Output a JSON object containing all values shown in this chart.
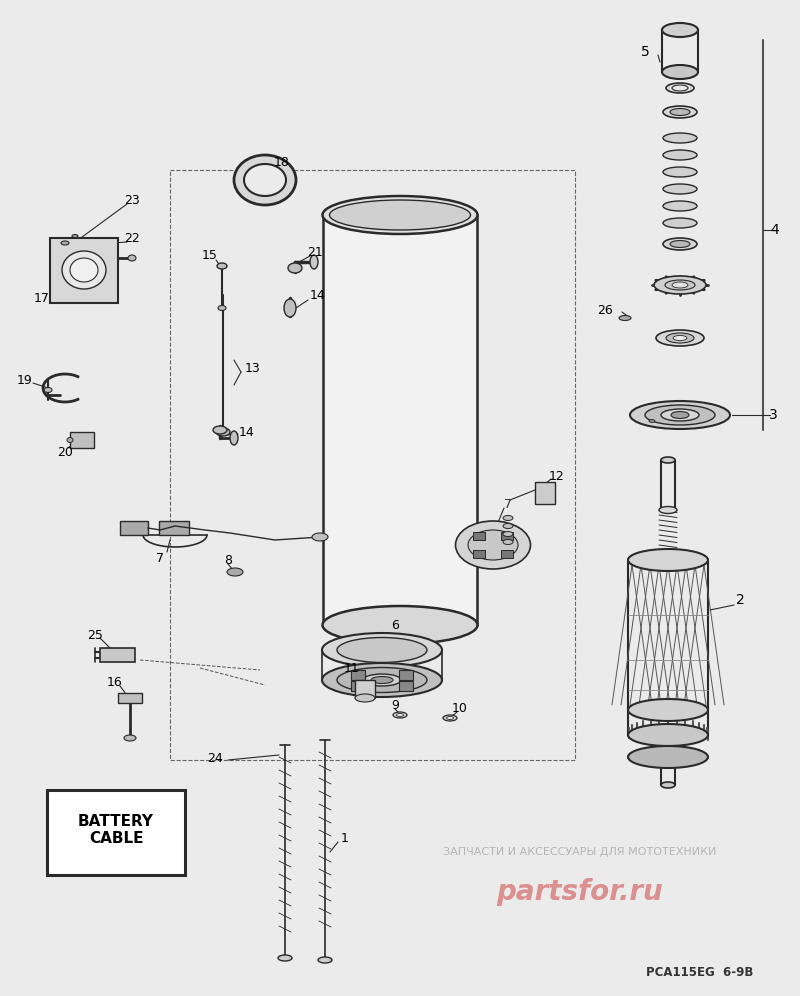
{
  "bg_color": "#ebebeb",
  "line_color": "#2a2a2a",
  "watermark_text": "ЗАПЧАСТИ И АКСЕССУАРЫ ДЛЯ МОТОТЕХНИКИ",
  "watermark_logo": "partsfor.ru",
  "diagram_code": "PCA115EG  6-9B",
  "battery_cable": "BATTERY\nCABLE",
  "fig_w": 8.0,
  "fig_h": 9.96,
  "dpi": 100,
  "xlim": [
    0,
    800
  ],
  "ylim": [
    0,
    996
  ]
}
